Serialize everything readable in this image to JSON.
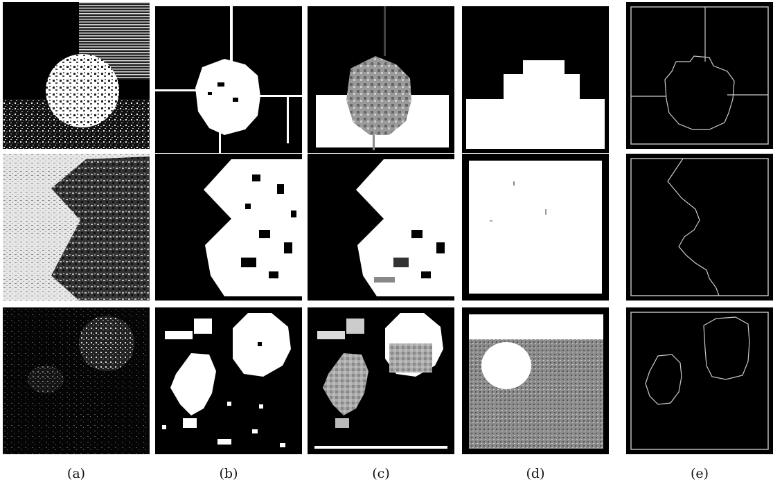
{
  "figure": {
    "columns": [
      {
        "key": "a",
        "label": "(a)"
      },
      {
        "key": "b",
        "label": "(b)"
      },
      {
        "key": "c",
        "label": "(c)"
      },
      {
        "key": "d",
        "label": "(d)"
      },
      {
        "key": "e",
        "label": "(e)"
      }
    ],
    "rows": 3,
    "colors": {
      "background": "#000000",
      "foreground": "#ffffff",
      "gray": "#9a9a9a",
      "page": "#ffffff"
    }
  }
}
